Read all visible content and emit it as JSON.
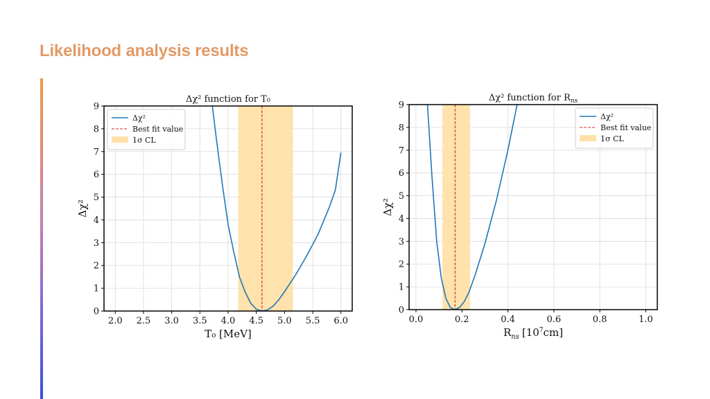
{
  "slide": {
    "title": "Likelihood analysis results",
    "accent_gradient": [
      "#ef9a44",
      "#c77db0",
      "#7a67d8",
      "#3a4fd8"
    ]
  },
  "colors": {
    "curve": "#1f77b4",
    "best_fit": "#d62728",
    "cl_band": "#ffe0a8",
    "grid": "#d9d9d9",
    "title_text": "#e29a67"
  },
  "chart_data": [
    {
      "type": "line",
      "title": "Δχ² function for T₀",
      "xlabel": "T₀ [MeV]",
      "ylabel": "Δχ²",
      "xlim": [
        1.8,
        6.2
      ],
      "ylim": [
        0,
        9
      ],
      "x_ticks": [
        2.0,
        2.5,
        3.0,
        3.5,
        4.0,
        4.5,
        5.0,
        5.5,
        6.0
      ],
      "x_tick_labels": [
        "2.0",
        "2.5",
        "3.0",
        "3.5",
        "4.0",
        "4.5",
        "5.0",
        "5.5",
        "6.0"
      ],
      "y_ticks": [
        0,
        1,
        2,
        3,
        4,
        5,
        6,
        7,
        8,
        9
      ],
      "y_tick_labels": [
        "0",
        "1",
        "2",
        "3",
        "4",
        "5",
        "6",
        "7",
        "8",
        "9"
      ],
      "grid": true,
      "legend_position": "top-left",
      "legend": [
        "Δχ²",
        "Best fit value",
        "1σ CL"
      ],
      "best_fit": 4.6,
      "cl_band": [
        4.18,
        5.15
      ],
      "series": [
        {
          "name": "Δχ²",
          "x": [
            3.72,
            3.8,
            3.9,
            4.0,
            4.1,
            4.2,
            4.3,
            4.4,
            4.5,
            4.6,
            4.7,
            4.8,
            4.9,
            5.0,
            5.2,
            5.4,
            5.6,
            5.8,
            5.9,
            6.0
          ],
          "y": [
            9.0,
            7.4,
            5.5,
            3.8,
            2.6,
            1.5,
            0.85,
            0.35,
            0.08,
            0.0,
            0.05,
            0.22,
            0.5,
            0.85,
            1.6,
            2.45,
            3.4,
            4.6,
            5.3,
            6.95
          ]
        }
      ]
    },
    {
      "type": "line",
      "title": "Δχ² function for R",
      "title_subscript": "ns",
      "xlabel": "R",
      "xlabel_subscript": "ns",
      "xlabel_unit_prefix": "[10",
      "xlabel_unit_exponent": "7",
      "xlabel_unit_suffix": "cm]",
      "ylabel": "Δχ²",
      "xlim": [
        -0.03,
        1.05
      ],
      "ylim": [
        0,
        9
      ],
      "x_ticks": [
        0.0,
        0.2,
        0.4,
        0.6,
        0.8,
        1.0
      ],
      "x_tick_labels": [
        "0.0",
        "0.2",
        "0.4",
        "0.6",
        "0.8",
        "1.0"
      ],
      "y_ticks": [
        0,
        1,
        2,
        3,
        4,
        5,
        6,
        7,
        8,
        9
      ],
      "y_tick_labels": [
        "0",
        "1",
        "2",
        "3",
        "4",
        "5",
        "6",
        "7",
        "8",
        "9"
      ],
      "grid": true,
      "legend_position": "top-right",
      "legend": [
        "Δχ²",
        "Best fit value",
        "1σ CL"
      ],
      "best_fit": 0.17,
      "cl_band": [
        0.115,
        0.235
      ],
      "series": [
        {
          "name": "Δχ²",
          "x": [
            0.05,
            0.07,
            0.09,
            0.11,
            0.13,
            0.15,
            0.17,
            0.19,
            0.21,
            0.23,
            0.26,
            0.3,
            0.35,
            0.4,
            0.44
          ],
          "y": [
            9.0,
            5.8,
            3.0,
            1.4,
            0.5,
            0.08,
            0.0,
            0.1,
            0.35,
            0.75,
            1.6,
            2.9,
            4.8,
            7.0,
            9.0
          ]
        }
      ]
    }
  ]
}
